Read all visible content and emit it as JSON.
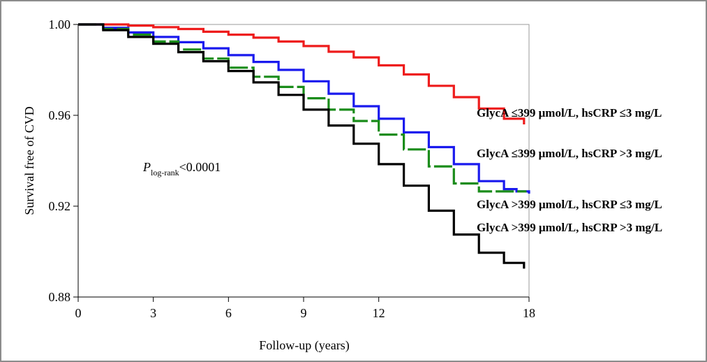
{
  "chart_data": {
    "type": "line",
    "subtype": "kaplan-meier step curve",
    "xlabel": "Follow-up (years)",
    "ylabel": "Survival free of CVD",
    "xlim": [
      0,
      18
    ],
    "ylim": [
      0.88,
      1.0
    ],
    "x_ticks": [
      0,
      3,
      6,
      9,
      12,
      18
    ],
    "x_tick_labels": [
      "0",
      "3",
      "6",
      "9",
      "12",
      "18"
    ],
    "y_ticks": [
      0.88,
      0.92,
      0.96,
      1.0
    ],
    "y_tick_labels": [
      "0.88",
      "0.92",
      "0.96",
      "1.00"
    ],
    "grid": false,
    "annotation": {
      "p_symbol": "P",
      "p_subscript": "log-rank",
      "p_value": "<0.0001"
    },
    "series": [
      {
        "name": "GlycA ≤399 μmol/L, hsCRP ≤3 mg/L",
        "color": "#ee1c1c",
        "dashed": false,
        "x": [
          0,
          1,
          2,
          3,
          4,
          5,
          6,
          7,
          8,
          9,
          10,
          11,
          12,
          13,
          14,
          15,
          16,
          17,
          17.8
        ],
        "y": [
          1.0,
          1.0,
          0.9995,
          0.9988,
          0.998,
          0.9968,
          0.9955,
          0.9942,
          0.9925,
          0.9905,
          0.988,
          0.9855,
          0.982,
          0.978,
          0.973,
          0.968,
          0.963,
          0.9585,
          0.956
        ]
      },
      {
        "name": "GlycA ≤399 μmol/L, hsCRP >3 mg/L",
        "color": "#1a1aee",
        "dashed": false,
        "x": [
          0,
          1,
          2,
          3,
          4,
          5,
          6,
          7,
          8,
          9,
          10,
          11,
          12,
          13,
          14,
          15,
          16,
          17,
          17.5,
          18
        ],
        "y": [
          1.0,
          0.9985,
          0.9965,
          0.9945,
          0.9922,
          0.9895,
          0.9865,
          0.9835,
          0.98,
          0.975,
          0.9695,
          0.964,
          0.9585,
          0.9525,
          0.946,
          0.9385,
          0.931,
          0.9275,
          0.9265,
          0.9255
        ]
      },
      {
        "name": "GlycA >399 μmol/L, hsCRP ≤3 mg/L",
        "color": "#1a8c1a",
        "dashed": true,
        "x": [
          0,
          1,
          2,
          3,
          4,
          5,
          6,
          7,
          8,
          9,
          10,
          11,
          12,
          13,
          14,
          15,
          16,
          17,
          17.9
        ],
        "y": [
          1.0,
          0.998,
          0.9955,
          0.9925,
          0.989,
          0.985,
          0.981,
          0.977,
          0.9725,
          0.9675,
          0.9625,
          0.9575,
          0.9515,
          0.945,
          0.9375,
          0.93,
          0.9265,
          0.9265,
          0.9265
        ]
      },
      {
        "name": "GlycA >399 μmol/L, hsCRP >3 mg/L",
        "color": "#000000",
        "dashed": false,
        "x": [
          0,
          1,
          2,
          3,
          4,
          5,
          6,
          7,
          8,
          9,
          10,
          11,
          12,
          13,
          14,
          15,
          16,
          17,
          17.8
        ],
        "y": [
          1.0,
          0.9975,
          0.9945,
          0.9915,
          0.9878,
          0.9838,
          0.9795,
          0.9745,
          0.969,
          0.9625,
          0.9555,
          0.9475,
          0.9385,
          0.929,
          0.918,
          0.9075,
          0.8995,
          0.895,
          0.8925
        ]
      }
    ]
  }
}
